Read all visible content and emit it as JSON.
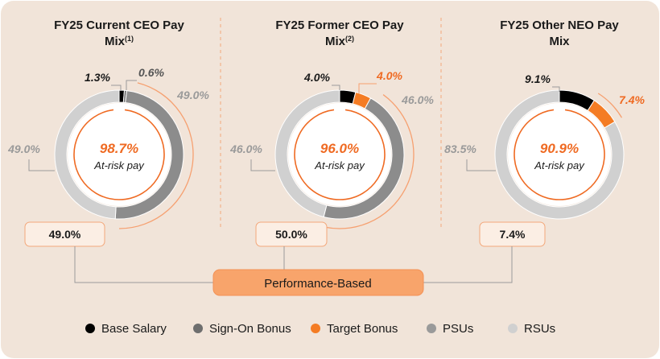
{
  "colors": {
    "background": "#f1e4d9",
    "base_salary": "#000000",
    "sign_on_bonus": "#8c8c8c",
    "target_bonus": "#f47c24",
    "psus": "#8c8c8c",
    "rsus": "#d0d0d0",
    "accent": "#ef6a22",
    "perf_box": "#f8a46b"
  },
  "chart_data": [
    {
      "type": "pie",
      "title": "FY25 Current CEO Pay Mix",
      "title_lines": [
        "FY25 Current CEO Pay",
        "Mix"
      ],
      "title_sup": "(1)",
      "slices": [
        {
          "label": "Base Salary",
          "value": 1.3,
          "display": "1.3%"
        },
        {
          "label": "Sign-On Bonus",
          "value": 0.6,
          "display": "0.6%"
        },
        {
          "label": "PSUs",
          "value": 49.0,
          "display": "49.0%"
        },
        {
          "label": "RSUs",
          "value": 49.0,
          "display": "49.0%"
        }
      ],
      "center_value": "98.7%",
      "center_label": "At-risk pay",
      "performance_box": "49.0%"
    },
    {
      "type": "pie",
      "title": "FY25 Former CEO Pay Mix",
      "title_lines": [
        "FY25 Former CEO Pay",
        "Mix"
      ],
      "title_sup": "(2)",
      "slices": [
        {
          "label": "Base Salary",
          "value": 4.0,
          "display": "4.0%"
        },
        {
          "label": "Target Bonus",
          "value": 4.0,
          "display": "4.0%"
        },
        {
          "label": "PSUs",
          "value": 46.0,
          "display": "46.0%"
        },
        {
          "label": "RSUs",
          "value": 46.0,
          "display": "46.0%"
        }
      ],
      "center_value": "96.0%",
      "center_label": "At-risk pay",
      "performance_box": "50.0%"
    },
    {
      "type": "pie",
      "title": "FY25 Other NEO Pay Mix",
      "title_lines": [
        "FY25 Other NEO Pay",
        "Mix"
      ],
      "title_sup": "",
      "slices": [
        {
          "label": "Base Salary",
          "value": 9.1,
          "display": "9.1%"
        },
        {
          "label": "Target Bonus",
          "value": 7.4,
          "display": "7.4%"
        },
        {
          "label": "RSUs",
          "value": 83.5,
          "display": "83.5%"
        }
      ],
      "center_value": "90.9%",
      "center_label": "At-risk pay",
      "performance_box": "7.4%"
    }
  ],
  "performance_label": "Performance-Based",
  "legend": [
    {
      "label": "Base Salary",
      "color": "#000000"
    },
    {
      "label": "Sign-On Bonus",
      "color": "#6e6e6e"
    },
    {
      "label": "Target Bonus",
      "color": "#f47c24"
    },
    {
      "label": "PSUs",
      "color": "#9a9a9a"
    },
    {
      "label": "RSUs",
      "color": "#d0d0d0"
    }
  ]
}
